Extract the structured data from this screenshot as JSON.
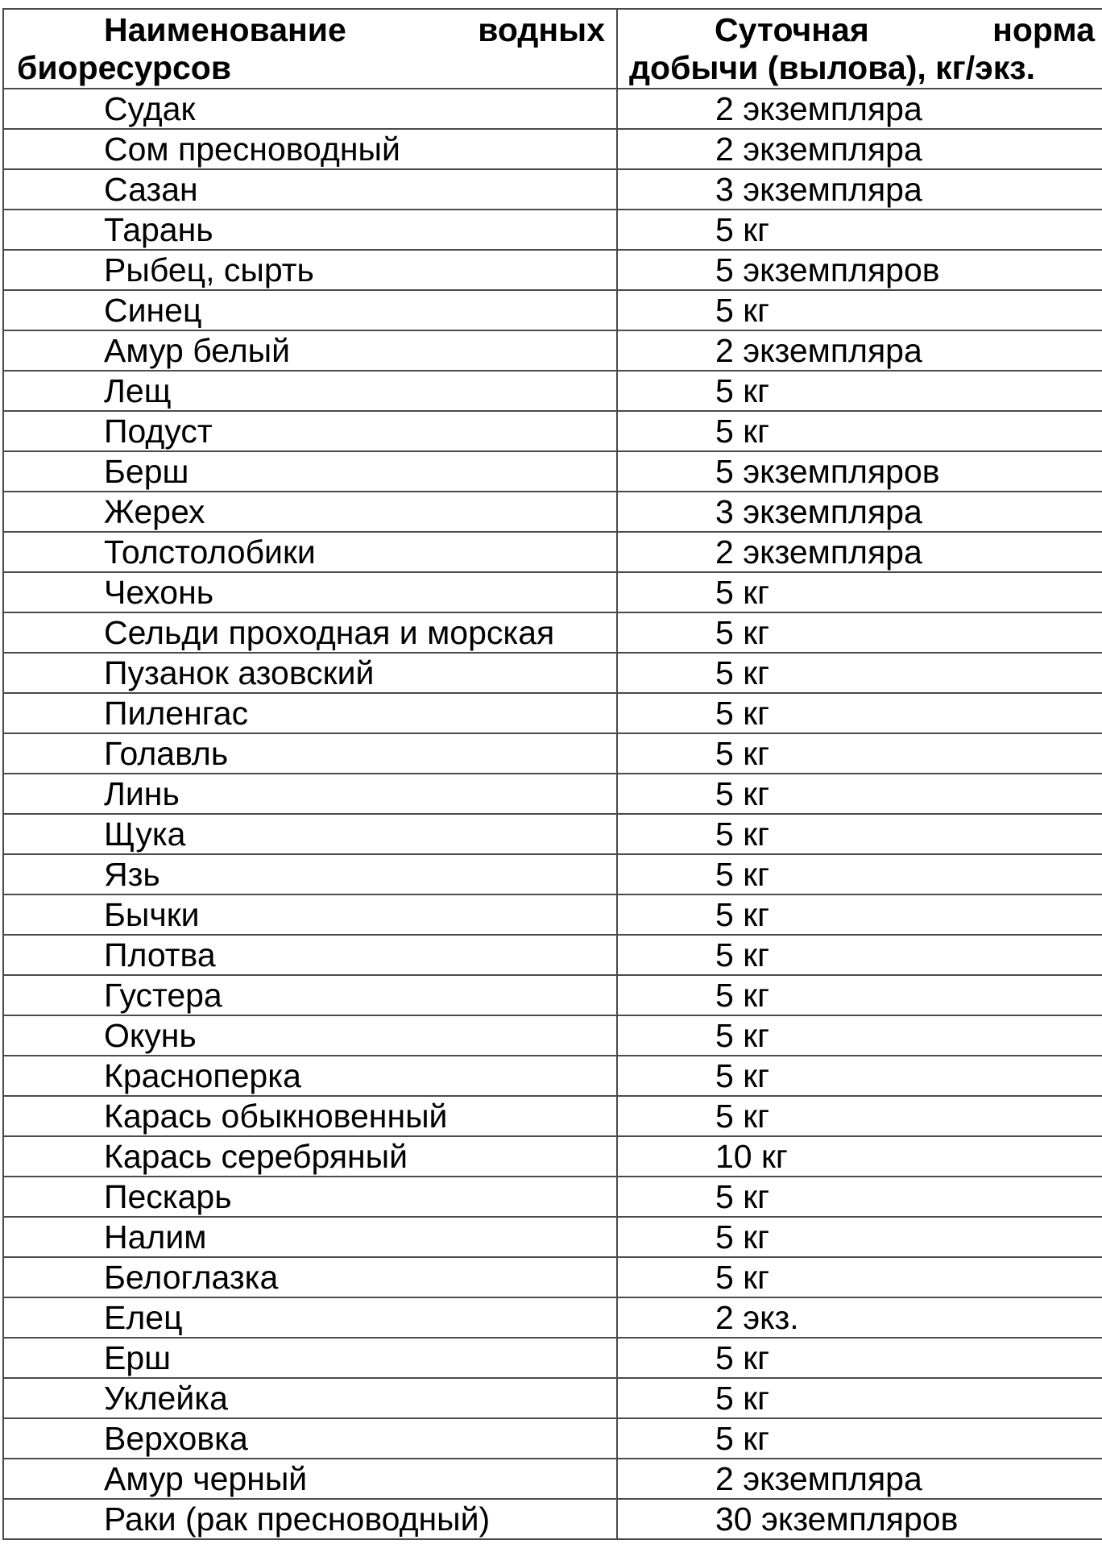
{
  "table": {
    "headers": [
      "Наименование водных биоресурсов",
      "Суточная норма добычи (вылова), кг/экз."
    ],
    "rows": [
      [
        "Судак",
        "2 экземпляра"
      ],
      [
        "Сом пресноводный",
        "2 экземпляра"
      ],
      [
        "Сазан",
        "3 экземпляра"
      ],
      [
        "Тарань",
        "5 кг"
      ],
      [
        "Рыбец, сырть",
        "5 экземпляров"
      ],
      [
        "Синец",
        "5 кг"
      ],
      [
        "Амур белый",
        "2 экземпляра"
      ],
      [
        "Лещ",
        "5 кг"
      ],
      [
        "Подуст",
        "5 кг"
      ],
      [
        "Берш",
        "5 экземпляров"
      ],
      [
        "Жерех",
        "3 экземпляра"
      ],
      [
        "Толстолобики",
        "2 экземпляра"
      ],
      [
        "Чехонь",
        "5 кг"
      ],
      [
        "Сельди проходная и морская",
        "5 кг"
      ],
      [
        "Пузанок азовский",
        "5 кг"
      ],
      [
        "Пиленгас",
        "5 кг"
      ],
      [
        "Голавль",
        "5 кг"
      ],
      [
        "Линь",
        "5 кг"
      ],
      [
        "Щука",
        "5 кг"
      ],
      [
        "Язь",
        "5 кг"
      ],
      [
        "Бычки",
        "5 кг"
      ],
      [
        "Плотва",
        "5 кг"
      ],
      [
        "Густера",
        "5 кг"
      ],
      [
        "Окунь",
        "5 кг"
      ],
      [
        "Красноперка",
        "5 кг"
      ],
      [
        "Карась обыкновенный",
        "5 кг"
      ],
      [
        "Карась серебряный",
        "10 кг"
      ],
      [
        "Пескарь",
        "5 кг"
      ],
      [
        "Налим",
        "5 кг"
      ],
      [
        "Белоглазка",
        "5 кг"
      ],
      [
        "Елец",
        "2 экз."
      ],
      [
        "Ерш",
        "5 кг"
      ],
      [
        "Уклейка",
        "5 кг"
      ],
      [
        "Верховка",
        "5 кг"
      ],
      [
        "Амур черный",
        "2 экземпляра"
      ],
      [
        "Раки (рак пресноводный)",
        "30 экземпляров"
      ]
    ]
  }
}
